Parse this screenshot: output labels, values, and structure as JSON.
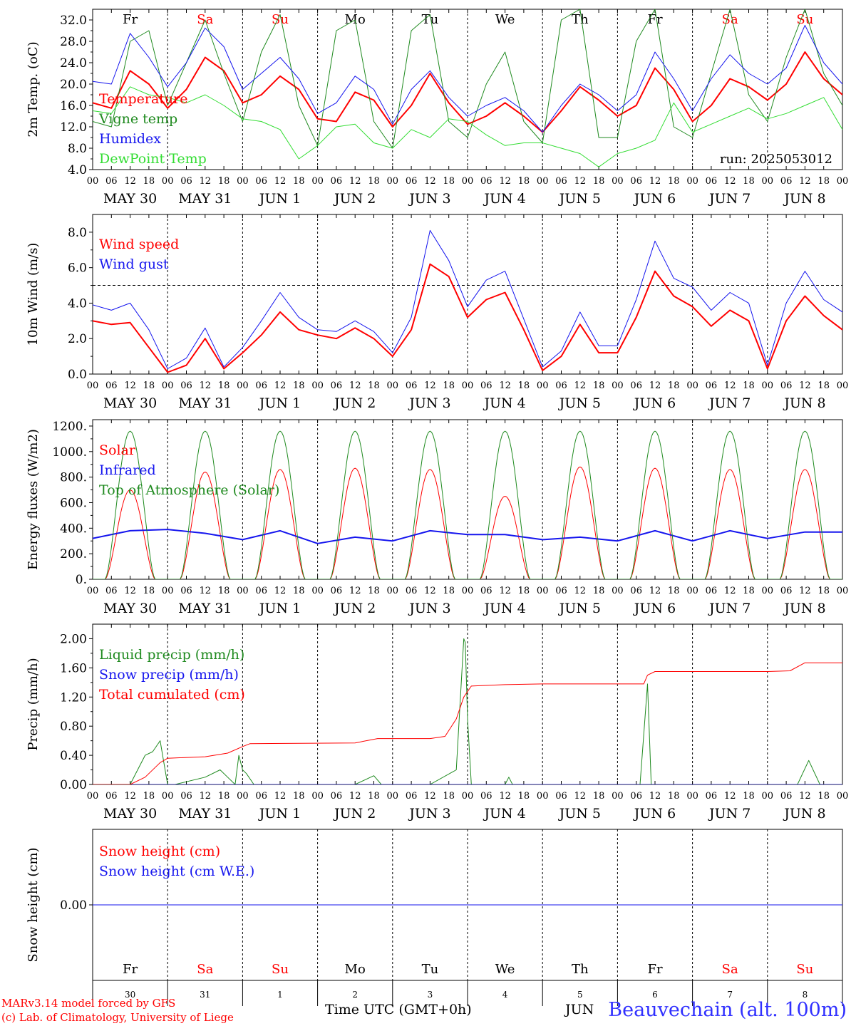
{
  "colors": {
    "red": "#ff0000",
    "dark_green": "#1f8a1f",
    "light_green": "#33dd33",
    "blue": "#1515ee",
    "black": "#000000",
    "weekend_red": "#ff0000"
  },
  "days": [
    {
      "abbr": "Fr",
      "weekend": false,
      "date_label": "MAY 30",
      "day_num": "30"
    },
    {
      "abbr": "Sa",
      "weekend": true,
      "date_label": "MAY 31",
      "day_num": "31"
    },
    {
      "abbr": "Su",
      "weekend": true,
      "date_label": "JUN  1",
      "day_num": "1"
    },
    {
      "abbr": "Mo",
      "weekend": false,
      "date_label": "JUN  2",
      "day_num": "2"
    },
    {
      "abbr": "Tu",
      "weekend": false,
      "date_label": "JUN  3",
      "day_num": "3"
    },
    {
      "abbr": "We",
      "weekend": false,
      "date_label": "JUN  4",
      "day_num": "4"
    },
    {
      "abbr": "Th",
      "weekend": false,
      "date_label": "JUN  5",
      "day_num": "5"
    },
    {
      "abbr": "Fr",
      "weekend": false,
      "date_label": "JUN  6",
      "day_num": "6"
    },
    {
      "abbr": "Sa",
      "weekend": true,
      "date_label": "JUN  7",
      "day_num": "7"
    },
    {
      "abbr": "Su",
      "weekend": true,
      "date_label": "JUN  8",
      "day_num": "8"
    }
  ],
  "hour_ticks": [
    "00",
    "06",
    "12",
    "18"
  ],
  "chart_data": [
    {
      "type": "line",
      "title": "",
      "ylabel": "2m Temp. (oC)",
      "ylim": [
        4.0,
        34.0
      ],
      "yticks": [
        "4.0",
        "8.0",
        "12.0",
        "16.0",
        "20.0",
        "24.0",
        "28.0",
        "32.0"
      ],
      "xlim_days": [
        0,
        10
      ],
      "annotation": "run: 2025053012",
      "show_day_names": true,
      "series": [
        {
          "name": "Temperature",
          "color": "#ff0000",
          "width": 2,
          "x": [
            0,
            0.25,
            0.5,
            0.75,
            1,
            1.25,
            1.5,
            1.75,
            2,
            2.25,
            2.5,
            2.75,
            3,
            3.25,
            3.5,
            3.75,
            4,
            4.25,
            4.5,
            4.75,
            5,
            5.25,
            5.5,
            5.75,
            6,
            6.25,
            6.5,
            6.75,
            7,
            7.25,
            7.5,
            7.75,
            8,
            8.25,
            8.5,
            8.75,
            9,
            9.25,
            9.5,
            9.75,
            10
          ],
          "y": [
            16.5,
            15.5,
            22.5,
            20.0,
            15.5,
            19.0,
            25.0,
            22.5,
            16.5,
            18.0,
            21.5,
            19.0,
            13.5,
            13.0,
            18.5,
            17.0,
            12.0,
            16.0,
            22.0,
            16.5,
            12.5,
            14.0,
            16.5,
            14.0,
            11.0,
            15.0,
            19.5,
            17.0,
            14.0,
            16.0,
            23.0,
            19.0,
            13.0,
            16.0,
            21.0,
            19.5,
            17.0,
            20.0,
            26.0,
            21.0,
            18.0
          ]
        },
        {
          "name": "Vigne temp",
          "color": "#1f8a1f",
          "width": 1,
          "x": [
            0,
            0.25,
            0.5,
            0.75,
            1,
            1.25,
            1.5,
            1.75,
            2,
            2.25,
            2.5,
            2.75,
            3,
            3.25,
            3.5,
            3.75,
            4,
            4.25,
            4.5,
            4.75,
            5,
            5.25,
            5.5,
            5.75,
            6,
            6.25,
            6.5,
            6.75,
            7,
            7.25,
            7.5,
            7.75,
            8,
            8.25,
            8.5,
            8.75,
            9,
            9.25,
            9.5,
            9.75,
            10
          ],
          "y": [
            13.0,
            12.0,
            28.0,
            30.0,
            16.0,
            24.0,
            32.0,
            22.0,
            13.0,
            26.0,
            33.0,
            16.0,
            8.5,
            30.0,
            32.0,
            13.0,
            8.0,
            30.0,
            33.0,
            13.0,
            10.0,
            20.0,
            26.0,
            13.0,
            9.0,
            32.0,
            34.0,
            10.0,
            10.0,
            28.0,
            34.0,
            12.0,
            10.0,
            22.0,
            34.0,
            18.0,
            13.0,
            25.0,
            34.0,
            22.0,
            16.0
          ]
        },
        {
          "name": "Humidex",
          "color": "#1515ee",
          "width": 1,
          "x": [
            0,
            0.25,
            0.5,
            0.75,
            1,
            1.25,
            1.5,
            1.75,
            2,
            2.25,
            2.5,
            2.75,
            3,
            3.25,
            3.5,
            3.75,
            4,
            4.25,
            4.5,
            4.75,
            5,
            5.25,
            5.5,
            5.75,
            6,
            6.25,
            6.5,
            6.75,
            7,
            7.25,
            7.5,
            7.75,
            8,
            8.25,
            8.5,
            8.75,
            9,
            9.25,
            9.5,
            9.75,
            10
          ],
          "y": [
            20.5,
            20.0,
            29.5,
            25.0,
            19.5,
            24.0,
            30.5,
            27.0,
            19.0,
            22.0,
            25.0,
            21.0,
            14.5,
            16.5,
            21.5,
            19.0,
            12.5,
            19.0,
            22.5,
            17.5,
            14.0,
            16.0,
            17.5,
            15.0,
            11.0,
            16.0,
            20.0,
            18.0,
            15.0,
            18.0,
            26.0,
            21.0,
            15.0,
            21.0,
            25.5,
            22.0,
            20.0,
            23.0,
            31.0,
            24.0,
            20.0
          ]
        },
        {
          "name": "DewPoint Temp",
          "color": "#33dd33",
          "width": 1,
          "x": [
            0,
            0.25,
            0.5,
            0.75,
            1,
            1.25,
            1.5,
            1.75,
            2,
            2.25,
            2.5,
            2.75,
            3,
            3.25,
            3.5,
            3.75,
            4,
            4.25,
            4.5,
            4.75,
            5,
            5.25,
            5.5,
            5.75,
            6,
            6.25,
            6.5,
            6.75,
            7,
            7.25,
            7.5,
            7.75,
            8,
            8.25,
            8.5,
            8.75,
            9,
            9.25,
            9.5,
            9.75,
            10
          ],
          "y": [
            15.0,
            14.5,
            19.5,
            18.0,
            17.5,
            16.5,
            18.0,
            16.0,
            13.5,
            13.0,
            11.5,
            6.0,
            8.5,
            12.0,
            12.5,
            9.0,
            8.0,
            11.5,
            10.0,
            13.5,
            13.0,
            10.5,
            8.5,
            9.0,
            9.0,
            8.0,
            7.0,
            4.5,
            7.0,
            8.0,
            9.5,
            16.5,
            11.0,
            12.5,
            14.0,
            15.5,
            13.5,
            14.5,
            16.0,
            17.5,
            11.5
          ]
        }
      ]
    },
    {
      "type": "line",
      "title": "",
      "ylabel": "10m Wind (m/s)",
      "ylim": [
        0.0,
        9.0
      ],
      "yticks": [
        "0.0",
        "2.0",
        "4.0",
        "6.0",
        "8.0"
      ],
      "reference_line": 5.0,
      "xlim_days": [
        0,
        10
      ],
      "series": [
        {
          "name": "Wind speed",
          "color": "#ff0000",
          "width": 2,
          "x": [
            0,
            0.25,
            0.5,
            0.75,
            1,
            1.25,
            1.5,
            1.75,
            2,
            2.25,
            2.5,
            2.75,
            3,
            3.25,
            3.5,
            3.75,
            4,
            4.25,
            4.5,
            4.75,
            5,
            5.25,
            5.5,
            5.75,
            6,
            6.25,
            6.5,
            6.75,
            7,
            7.25,
            7.5,
            7.75,
            8,
            8.25,
            8.5,
            8.75,
            9,
            9.25,
            9.5,
            9.75,
            10
          ],
          "y": [
            3.0,
            2.8,
            2.9,
            1.5,
            0.1,
            0.5,
            2.0,
            0.3,
            1.2,
            2.2,
            3.5,
            2.5,
            2.2,
            2.0,
            2.6,
            2.0,
            1.0,
            2.5,
            6.2,
            5.5,
            3.2,
            4.2,
            4.6,
            2.5,
            0.2,
            1.0,
            2.8,
            1.2,
            1.2,
            3.2,
            5.8,
            4.4,
            3.8,
            2.7,
            3.6,
            3.0,
            0.3,
            3.0,
            4.4,
            3.3,
            2.5
          ]
        },
        {
          "name": "Wind gust",
          "color": "#1515ee",
          "width": 1,
          "x": [
            0,
            0.25,
            0.5,
            0.75,
            1,
            1.25,
            1.5,
            1.75,
            2,
            2.25,
            2.5,
            2.75,
            3,
            3.25,
            3.5,
            3.75,
            4,
            4.25,
            4.5,
            4.75,
            5,
            5.25,
            5.5,
            5.75,
            6,
            6.25,
            6.5,
            6.75,
            7,
            7.25,
            7.5,
            7.75,
            8,
            8.25,
            8.5,
            8.75,
            9,
            9.25,
            9.5,
            9.75,
            10
          ],
          "y": [
            3.9,
            3.6,
            4.0,
            2.5,
            0.3,
            0.9,
            2.6,
            0.4,
            1.5,
            3.0,
            4.6,
            3.2,
            2.5,
            2.4,
            3.0,
            2.4,
            1.2,
            3.2,
            8.1,
            6.4,
            3.8,
            5.3,
            5.8,
            3.1,
            0.4,
            1.3,
            3.5,
            1.6,
            1.6,
            4.2,
            7.5,
            5.4,
            4.9,
            3.6,
            4.6,
            4.0,
            0.5,
            4.0,
            5.8,
            4.2,
            3.5
          ]
        }
      ]
    },
    {
      "type": "line",
      "title": "",
      "ylabel": "Energy fluxes (W/m2)",
      "ylim": [
        0,
        1250
      ],
      "yticks": [
        "0.",
        "200.",
        "400.",
        "600.",
        "800.",
        "1000.",
        "1200."
      ],
      "xlim_days": [
        0,
        10
      ],
      "series": [
        {
          "name": "Solar",
          "color": "#ff0000",
          "width": 1,
          "daily_peak": [
            700,
            840,
            860,
            870,
            860,
            650,
            880,
            870,
            860,
            860
          ]
        },
        {
          "name": "Infrared",
          "color": "#1515ee",
          "width": 2,
          "x": [
            0,
            0.5,
            1,
            1.5,
            2,
            2.5,
            3,
            3.5,
            4,
            4.5,
            5,
            5.5,
            6,
            6.5,
            7,
            7.5,
            8,
            8.5,
            9,
            9.5,
            10
          ],
          "y": [
            320,
            380,
            390,
            360,
            310,
            380,
            280,
            330,
            300,
            380,
            350,
            350,
            310,
            330,
            300,
            380,
            300,
            380,
            320,
            370,
            370
          ]
        },
        {
          "name": "Top of Atmosphere (Solar)",
          "color": "#1f8a1f",
          "width": 1,
          "daily_peak": [
            1160,
            1160,
            1160,
            1160,
            1160,
            1160,
            1160,
            1160,
            1160,
            1160
          ]
        }
      ]
    },
    {
      "type": "line",
      "title": "",
      "ylabel": "Precip (mm/h)",
      "ylim": [
        0.0,
        2.2
      ],
      "yticks": [
        "0.00",
        "0.40",
        "0.80",
        "1.20",
        "1.60",
        "2.00"
      ],
      "xlim_days": [
        0,
        10
      ],
      "series": [
        {
          "name": "Liquid precip (mm/h)",
          "color": "#1f8a1f",
          "width": 1,
          "x": [
            0,
            0.5,
            0.6,
            0.7,
            0.8,
            0.9,
            0.95,
            1.0,
            1.1,
            1.5,
            1.7,
            1.8,
            1.9,
            1.95,
            2.0,
            2.05,
            2.15,
            2.3,
            3.5,
            3.75,
            3.85,
            4.0,
            4.5,
            4.85,
            4.95,
            4.97,
            5.0,
            5.05,
            5.1,
            5.5,
            5.55,
            5.6,
            5.7,
            7.2,
            7.3,
            7.4,
            7.45,
            7.5,
            8.5,
            8.95,
            9.4,
            9.55,
            9.7,
            10
          ],
          "y": [
            0,
            0,
            0.2,
            0.4,
            0.45,
            0.6,
            0.3,
            0.0,
            0.0,
            0.1,
            0.2,
            0.1,
            0.0,
            0.4,
            0.2,
            0.15,
            0.0,
            0.0,
            0.0,
            0.12,
            0.0,
            0.0,
            0.0,
            0.2,
            2.0,
            1.95,
            0.9,
            0.0,
            0.0,
            0.0,
            0.1,
            0.0,
            0.0,
            0.0,
            0.0,
            1.38,
            0.0,
            0.0,
            0.0,
            0.0,
            0.0,
            0.33,
            0.0,
            0.0
          ]
        },
        {
          "name": "Snow precip (mm/h)",
          "color": "#1515ee",
          "width": 1,
          "x": [
            0,
            10
          ],
          "y": [
            0,
            0
          ]
        },
        {
          "name": "Total cumulated (cm)",
          "color": "#ff0000",
          "width": 1,
          "x": [
            0,
            0.5,
            0.7,
            0.9,
            1.0,
            1.5,
            1.8,
            2.0,
            2.1,
            3.5,
            3.7,
            3.8,
            4.5,
            4.7,
            4.85,
            4.95,
            5.05,
            5.5,
            6.0,
            7.0,
            7.35,
            7.4,
            7.5,
            9.0,
            9.3,
            9.5,
            10
          ],
          "y": [
            0,
            0,
            0.1,
            0.3,
            0.36,
            0.38,
            0.43,
            0.52,
            0.56,
            0.57,
            0.61,
            0.63,
            0.63,
            0.66,
            0.9,
            1.2,
            1.35,
            1.37,
            1.38,
            1.38,
            1.38,
            1.5,
            1.55,
            1.55,
            1.56,
            1.67,
            1.67
          ]
        }
      ]
    },
    {
      "type": "line",
      "title": "",
      "ylabel": "Snow height (cm)",
      "ylim": [
        -1.0,
        1.0
      ],
      "yticks": [
        "0.00"
      ],
      "xlim_days": [
        0,
        10
      ],
      "series": [
        {
          "name": "Snow height (cm)",
          "color": "#ff0000",
          "width": 1,
          "x": [
            0,
            10
          ],
          "y": [
            0,
            0
          ]
        },
        {
          "name": "Snow height (cm W.E.)",
          "color": "#1515ee",
          "width": 1,
          "x": [
            0,
            10
          ],
          "y": [
            0,
            0
          ]
        }
      ]
    }
  ],
  "footer": {
    "credit_line1": "MARv3.14 model forced by GFS",
    "credit_line2": "(c) Lab. of Climatology, University of Liege",
    "time_label": "Time UTC (GMT+0h)",
    "month_label": "JUN",
    "station": "Beauvechain (alt. 100m)"
  }
}
